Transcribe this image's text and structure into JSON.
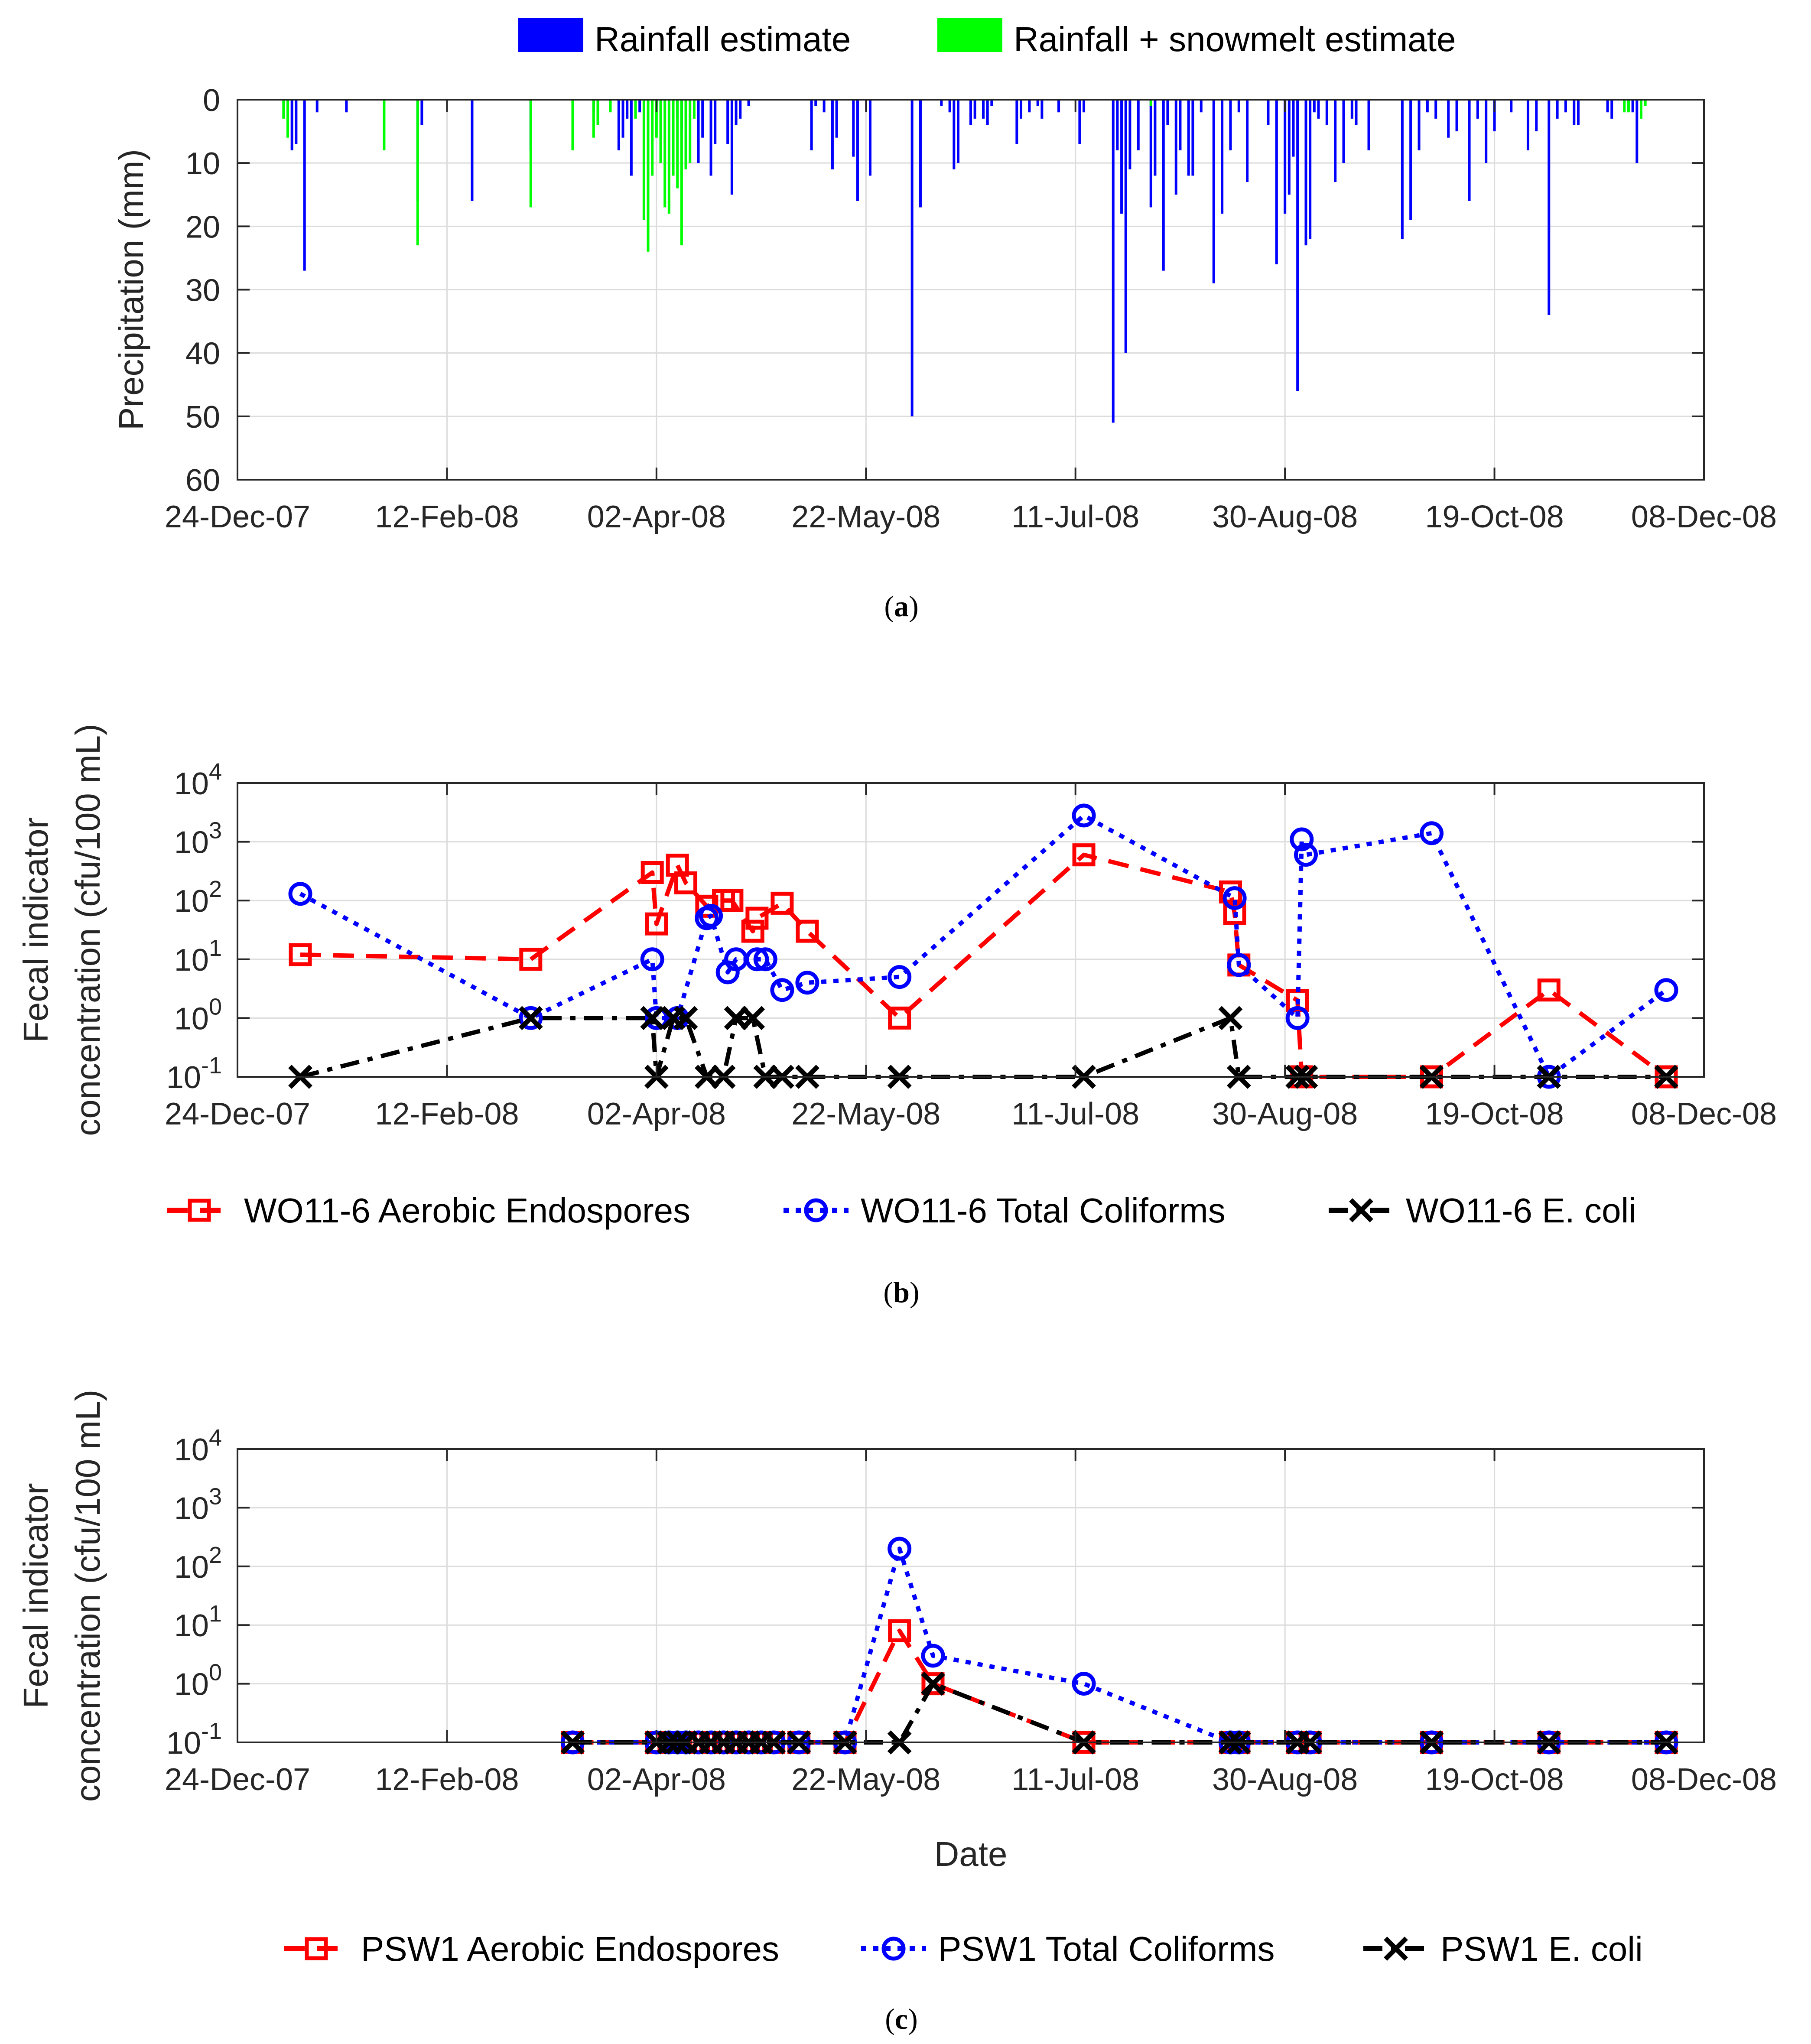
{
  "chart_data": [
    {
      "id": "a",
      "type": "bar",
      "caption_letter": "a",
      "ylabel": "Precipitation (mm)",
      "xlabel": "",
      "ylim": [
        0,
        60
      ],
      "yticks": [
        0,
        10,
        20,
        30,
        40,
        50,
        60
      ],
      "y_reversed": true,
      "grid": true,
      "legend_position": "top",
      "x_ticks": [
        "24-Dec-07",
        "12-Feb-08",
        "02-Apr-08",
        "22-May-08",
        "11-Jul-08",
        "30-Aug-08",
        "19-Oct-08",
        "08-Dec-08"
      ],
      "x_tick_days": [
        0,
        50,
        100,
        150,
        200,
        250,
        300,
        350
      ],
      "xlim_days": [
        0,
        350
      ],
      "series": [
        {
          "name": "Rainfall estimate",
          "color": "#0000FF",
          "bars": [
            [
              12,
              3
            ],
            [
              13,
              8
            ],
            [
              14,
              7
            ],
            [
              16,
              27
            ],
            [
              19,
              2
            ],
            [
              26,
              2
            ],
            [
              43,
              16
            ],
            [
              44,
              4
            ],
            [
              56,
              16
            ],
            [
              70,
              8
            ],
            [
              85,
              2
            ],
            [
              86,
              1
            ],
            [
              91,
              8
            ],
            [
              92,
              6
            ],
            [
              93,
              3
            ],
            [
              94,
              12
            ],
            [
              96,
              2
            ],
            [
              100,
              1
            ],
            [
              101,
              2
            ],
            [
              105,
              3
            ],
            [
              106,
              5
            ],
            [
              110,
              10
            ],
            [
              111,
              6
            ],
            [
              113,
              12
            ],
            [
              114,
              7
            ],
            [
              117,
              7
            ],
            [
              118,
              15
            ],
            [
              119,
              4
            ],
            [
              120,
              3
            ],
            [
              122,
              1
            ],
            [
              137,
              8
            ],
            [
              138,
              1
            ],
            [
              140,
              2
            ],
            [
              142,
              11
            ],
            [
              143,
              6
            ],
            [
              147,
              9
            ],
            [
              148,
              16
            ],
            [
              151,
              12
            ],
            [
              161,
              50
            ],
            [
              163,
              17
            ],
            [
              168,
              1
            ],
            [
              170,
              2
            ],
            [
              171,
              11
            ],
            [
              172,
              10
            ],
            [
              175,
              4
            ],
            [
              176,
              3
            ],
            [
              178,
              3
            ],
            [
              179,
              4
            ],
            [
              180,
              1
            ],
            [
              186,
              7
            ],
            [
              187,
              3
            ],
            [
              189,
              2
            ],
            [
              191,
              1
            ],
            [
              192,
              3
            ],
            [
              196,
              2
            ],
            [
              201,
              7
            ],
            [
              202,
              2
            ],
            [
              209,
              51
            ],
            [
              210,
              8
            ],
            [
              211,
              18
            ],
            [
              212,
              40
            ],
            [
              213,
              11
            ],
            [
              215,
              8
            ],
            [
              218,
              17
            ],
            [
              219,
              12
            ],
            [
              221,
              27
            ],
            [
              222,
              4
            ],
            [
              224,
              15
            ],
            [
              225,
              8
            ],
            [
              227,
              12
            ],
            [
              228,
              12
            ],
            [
              230,
              2
            ],
            [
              233,
              29
            ],
            [
              235,
              18
            ],
            [
              237,
              8
            ],
            [
              239,
              2
            ],
            [
              241,
              13
            ],
            [
              246,
              4
            ],
            [
              248,
              26
            ],
            [
              250,
              18
            ],
            [
              251,
              15
            ],
            [
              252,
              9
            ],
            [
              253,
              46
            ],
            [
              255,
              23
            ],
            [
              256,
              22
            ],
            [
              257,
              2
            ],
            [
              258,
              3
            ],
            [
              260,
              4
            ],
            [
              262,
              13
            ],
            [
              264,
              10
            ],
            [
              266,
              3
            ],
            [
              267,
              4
            ],
            [
              270,
              8
            ],
            [
              278,
              22
            ],
            [
              280,
              19
            ],
            [
              282,
              8
            ],
            [
              284,
              2
            ],
            [
              286,
              3
            ],
            [
              289,
              6
            ],
            [
              291,
              5
            ],
            [
              294,
              16
            ],
            [
              296,
              3
            ],
            [
              298,
              10
            ],
            [
              300,
              5
            ],
            [
              304,
              2
            ],
            [
              308,
              8
            ],
            [
              310,
              5
            ],
            [
              313,
              34
            ],
            [
              315,
              3
            ],
            [
              317,
              2
            ],
            [
              319,
              4
            ],
            [
              320,
              4
            ],
            [
              327,
              2
            ],
            [
              328,
              3
            ],
            [
              332,
              1
            ],
            [
              333,
              2
            ],
            [
              334,
              10
            ]
          ]
        },
        {
          "name": "Rainfall + snowmelt estimate",
          "color": "#00FF00",
          "bars": [
            [
              11,
              3
            ],
            [
              12,
              6
            ],
            [
              35,
              8
            ],
            [
              43,
              23
            ],
            [
              70,
              17
            ],
            [
              80,
              8
            ],
            [
              85,
              6
            ],
            [
              86,
              4
            ],
            [
              89,
              2
            ],
            [
              95,
              3
            ],
            [
              97,
              19
            ],
            [
              98,
              24
            ],
            [
              99,
              12
            ],
            [
              100,
              6
            ],
            [
              101,
              10
            ],
            [
              102,
              17
            ],
            [
              103,
              18
            ],
            [
              104,
              12
            ],
            [
              105,
              14
            ],
            [
              106,
              23
            ],
            [
              107,
              11
            ],
            [
              108,
              10
            ],
            [
              109,
              3
            ],
            [
              218,
              1
            ],
            [
              335,
              3
            ],
            [
              336,
              1
            ],
            [
              331,
              2
            ],
            [
              332,
              2
            ]
          ]
        }
      ]
    },
    {
      "id": "b",
      "type": "line",
      "caption_letter": "b",
      "ylabel_line1": "Fecal indicator",
      "ylabel_line2": "concentration (cfu/100 mL)",
      "xlabel": "",
      "y_scale": "log",
      "ylim": [
        0.1,
        10000
      ],
      "y_tick_exponents": [
        "-1",
        "0",
        "1",
        "2",
        "3",
        "4"
      ],
      "grid": true,
      "legend_position": "bottom",
      "x_ticks": [
        "24-Dec-07",
        "12-Feb-08",
        "02-Apr-08",
        "22-May-08",
        "11-Jul-08",
        "30-Aug-08",
        "19-Oct-08",
        "08-Dec-08"
      ],
      "x_tick_days": [
        0,
        50,
        100,
        150,
        200,
        250,
        300,
        350
      ],
      "xlim_days": [
        0,
        350
      ],
      "series": [
        {
          "name": "WO11-6 Aerobic Endospores",
          "color": "#FF0000",
          "marker": "square",
          "dash": "dashed",
          "x": [
            15,
            70,
            99,
            100,
            105,
            107,
            112,
            116,
            118,
            123,
            124,
            130,
            136,
            158,
            202,
            237,
            238,
            239,
            253,
            254,
            285,
            313,
            341
          ],
          "y": [
            12,
            10,
            300,
            40,
            400,
            200,
            80,
            100,
            100,
            30,
            50,
            90,
            30,
            1,
            600,
            140,
            60,
            8,
            2,
            0.1,
            0.1,
            3,
            0.1
          ]
        },
        {
          "name": "WO11-6 Total Coliforms",
          "color": "#0000FF",
          "marker": "circle",
          "dash": "dotted",
          "x": [
            15,
            70,
            99,
            100,
            105,
            112,
            113,
            117,
            119,
            124,
            126,
            130,
            136,
            158,
            202,
            238,
            239,
            253,
            254,
            255,
            285,
            313,
            341
          ],
          "y": [
            130,
            1,
            10,
            1,
            1,
            50,
            55,
            6,
            10,
            10,
            10,
            3,
            4,
            5,
            2800,
            110,
            8,
            1,
            1100,
            600,
            1400,
            0.1,
            3
          ]
        },
        {
          "name": "WO11-6 E. coli",
          "color": "#000000",
          "marker": "x",
          "dash": "dashdot",
          "x": [
            15,
            70,
            99,
            100,
            104,
            107,
            112,
            116,
            119,
            123,
            126,
            130,
            136,
            158,
            202,
            237,
            239,
            253,
            255,
            285,
            313,
            341
          ],
          "y": [
            0.1,
            1,
            1,
            0.1,
            1,
            1,
            0.1,
            0.1,
            1,
            1,
            0.1,
            0.1,
            0.1,
            0.1,
            0.1,
            1,
            0.1,
            0.1,
            0.1,
            0.1,
            0.1,
            0.1
          ]
        }
      ]
    },
    {
      "id": "c",
      "type": "line",
      "caption_letter": "c",
      "ylabel_line1": "Fecal indicator",
      "ylabel_line2": "concentration (cfu/100 mL)",
      "xlabel": "Date",
      "y_scale": "log",
      "ylim": [
        0.1,
        10000
      ],
      "y_tick_exponents": [
        "-1",
        "0",
        "1",
        "2",
        "3",
        "4"
      ],
      "grid": true,
      "legend_position": "bottom",
      "x_ticks": [
        "24-Dec-07",
        "12-Feb-08",
        "02-Apr-08",
        "22-May-08",
        "11-Jul-08",
        "30-Aug-08",
        "19-Oct-08",
        "08-Dec-08"
      ],
      "x_tick_days": [
        0,
        50,
        100,
        150,
        200,
        250,
        300,
        350
      ],
      "xlim_days": [
        0,
        350
      ],
      "series": [
        {
          "name": "PSW1 Aerobic Endospores",
          "color": "#FF0000",
          "marker": "square",
          "dash": "dashed",
          "x": [
            80,
            100,
            103,
            105,
            107,
            110,
            113,
            116,
            119,
            122,
            125,
            128,
            134,
            145,
            158,
            166,
            202,
            237,
            239,
            253,
            256,
            285,
            313,
            341
          ],
          "y": [
            0.1,
            0.1,
            0.1,
            0.1,
            0.1,
            0.1,
            0.1,
            0.1,
            0.1,
            0.1,
            0.1,
            0.1,
            0.1,
            0.1,
            8,
            1,
            0.1,
            0.1,
            0.1,
            0.1,
            0.1,
            0.1,
            0.1,
            0.1
          ]
        },
        {
          "name": "PSW1 Total Coliforms",
          "color": "#0000FF",
          "marker": "circle",
          "dash": "dotted",
          "x": [
            80,
            100,
            103,
            105,
            107,
            110,
            113,
            116,
            119,
            122,
            125,
            128,
            134,
            145,
            158,
            166,
            202,
            237,
            239,
            253,
            256,
            285,
            313,
            341
          ],
          "y": [
            0.1,
            0.1,
            0.1,
            0.1,
            0.1,
            0.1,
            0.1,
            0.1,
            0.1,
            0.1,
            0.1,
            0.1,
            0.1,
            0.1,
            200,
            3,
            1,
            0.1,
            0.1,
            0.1,
            0.1,
            0.1,
            0.1,
            0.1
          ]
        },
        {
          "name": "PSW1 E. coli",
          "color": "#000000",
          "marker": "x",
          "dash": "dashdot",
          "x": [
            80,
            100,
            103,
            105,
            107,
            110,
            113,
            116,
            119,
            122,
            125,
            128,
            134,
            145,
            158,
            166,
            202,
            237,
            239,
            253,
            256,
            285,
            313,
            341
          ],
          "y": [
            0.1,
            0.1,
            0.1,
            0.1,
            0.1,
            0.1,
            0.1,
            0.1,
            0.1,
            0.1,
            0.1,
            0.1,
            0.1,
            0.1,
            0.1,
            1,
            0.1,
            0.1,
            0.1,
            0.1,
            0.1,
            0.1,
            0.1,
            0.1
          ]
        }
      ]
    }
  ]
}
